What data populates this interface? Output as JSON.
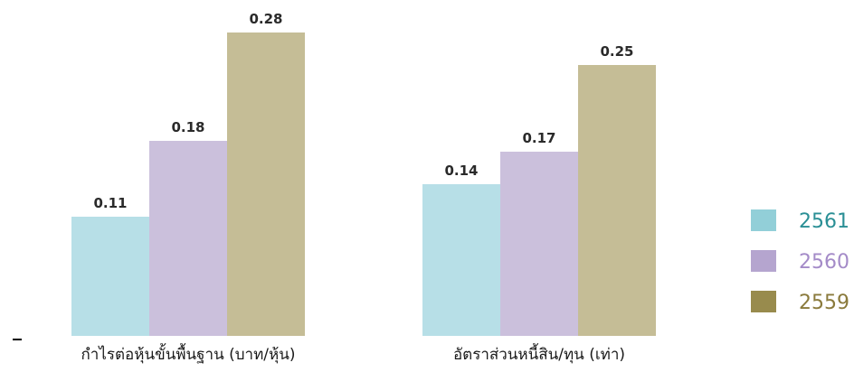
{
  "chart_data": {
    "type": "bar",
    "categories": [
      "กำไรต่อหุ้นขั้นพื้นฐาน (บาท/หุ้น)",
      "อัตราส่วนหนี้สิน/ทุน (เท่า)"
    ],
    "series": [
      {
        "name": "2561",
        "values": [
          0.11,
          0.14
        ],
        "labels": [
          "0.11",
          "0.14"
        ]
      },
      {
        "name": "2560",
        "values": [
          0.18,
          0.17
        ],
        "labels": [
          "0.18",
          "0.17"
        ]
      },
      {
        "name": "2559",
        "values": [
          0.28,
          0.25
        ],
        "labels": [
          "0.28",
          "0.25"
        ]
      }
    ],
    "ylim": [
      0,
      0.28
    ],
    "grid": false,
    "legend_position": "right",
    "colors": {
      "bars": [
        "#b7dfe7",
        "#cbc0dc",
        "#c5bd96"
      ],
      "legend_swatches": [
        "#92cfd8",
        "#b5a5cf",
        "#988b4d"
      ],
      "legend_text": [
        "#2a8f95",
        "#a48bc8",
        "#8a7a3c"
      ]
    }
  }
}
